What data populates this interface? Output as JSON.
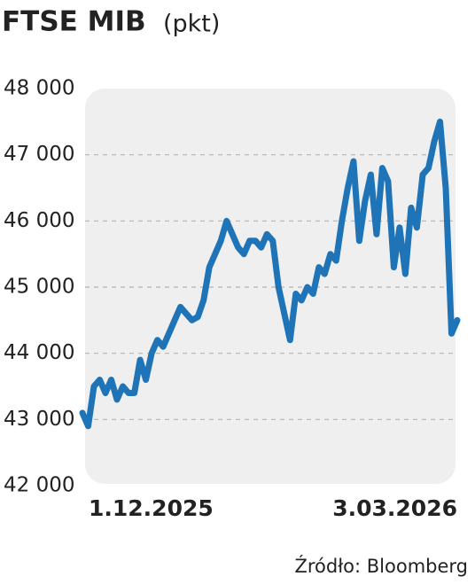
{
  "chart_data": {
    "type": "line",
    "title": "FTSE MIB",
    "subtitle": "(pkt)",
    "source": "Źródło: Bloomberg",
    "categories": [
      "1.12.2025",
      null,
      null,
      null,
      null,
      null,
      null,
      null,
      null,
      null,
      null,
      null,
      null,
      null,
      null,
      null,
      null,
      null,
      null,
      null,
      null,
      null,
      null,
      null,
      null,
      null,
      null,
      null,
      null,
      null,
      null,
      null,
      null,
      null,
      null,
      null,
      null,
      null,
      null,
      null,
      null,
      null,
      null,
      null,
      null,
      null,
      null,
      null,
      null,
      null,
      null,
      null,
      null,
      null,
      null,
      null,
      null,
      null,
      null,
      null,
      null,
      null,
      null,
      null,
      null,
      "3.03.2026"
    ],
    "series": [
      {
        "name": "FTSE MIB",
        "color": "#1f73b7",
        "values": [
          43100,
          42900,
          43500,
          43600,
          43400,
          43600,
          43300,
          43500,
          43400,
          43400,
          43900,
          43600,
          44000,
          44200,
          44100,
          44300,
          44500,
          44700,
          44600,
          44500,
          44550,
          44800,
          45300,
          45500,
          45700,
          46000,
          45800,
          45600,
          45500,
          45700,
          45700,
          45600,
          45800,
          45700,
          45000,
          44600,
          44200,
          44900,
          44800,
          45000,
          44900,
          45300,
          45200,
          45500,
          45400,
          46000,
          46500,
          46900,
          45700,
          46300,
          46700,
          45800,
          46800,
          46600,
          45300,
          45900,
          45200,
          46200,
          45900,
          46700,
          46800,
          47200,
          47500,
          46500,
          44300,
          44500
        ]
      }
    ],
    "ylim": [
      42000,
      48000
    ],
    "yticks": [
      {
        "value": 42000,
        "label": "42 000"
      },
      {
        "value": 43000,
        "label": "43 000"
      },
      {
        "value": 44000,
        "label": "44 000"
      },
      {
        "value": 45000,
        "label": "45 000"
      },
      {
        "value": 46000,
        "label": "46 000"
      },
      {
        "value": 47000,
        "label": "47 000"
      },
      {
        "value": 48000,
        "label": "48 000"
      }
    ],
    "grid": true
  }
}
